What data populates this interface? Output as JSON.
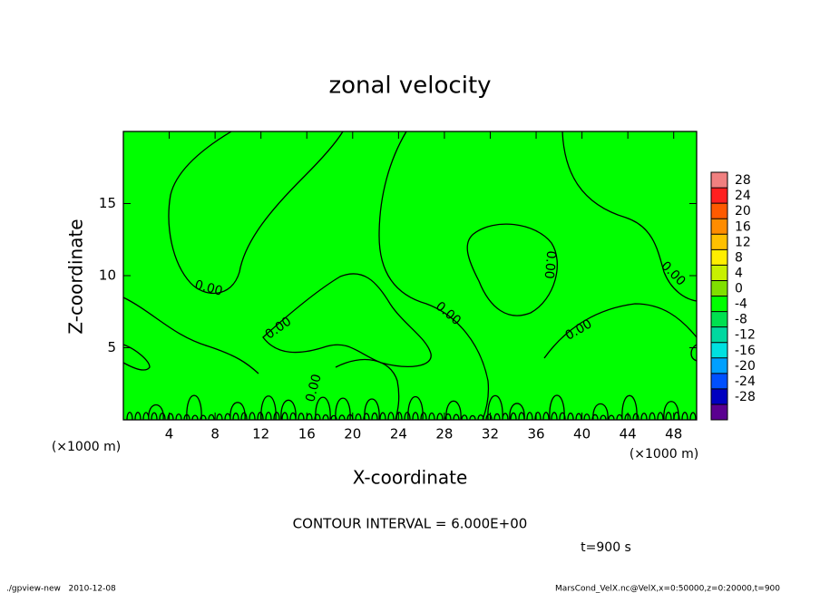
{
  "chart_data": {
    "type": "contour",
    "title": "zonal velocity",
    "x_label": "X-coordinate",
    "y_label": "Z-coordinate",
    "y_unit": "(×1000 m)",
    "x_unit": "(×1000 m)",
    "xlim": [
      0,
      50
    ],
    "ylim": [
      0,
      20
    ],
    "xticks": [
      4,
      8,
      12,
      16,
      20,
      24,
      28,
      32,
      36,
      40,
      44,
      48
    ],
    "yticks": [
      5,
      10,
      15
    ],
    "fill_color": "#00ff00",
    "line_color": "#000000",
    "contour_labels": [
      "0.00",
      "0.00",
      "0.00",
      "0.00",
      "0.00",
      "0.00",
      "0.00"
    ],
    "colorbar": {
      "levels": [
        28,
        24,
        20,
        16,
        12,
        8,
        4,
        0,
        -4,
        -8,
        -12,
        -16,
        -20,
        -24,
        -28
      ],
      "colors": [
        "#f08080",
        "#ff2020",
        "#ff5a00",
        "#ff8c00",
        "#ffc000",
        "#ffee00",
        "#c8f000",
        "#80e000",
        "#00ff00",
        "#00e050",
        "#00d8a0",
        "#00e0e0",
        "#00a0ff",
        "#0050ff",
        "#0000c0",
        "#5a0090"
      ]
    },
    "contour_interval": "CONTOUR INTERVAL = 6.000E+00",
    "time": "t=900 s",
    "program": "./gpview-new   2010-12-08",
    "source": "MarsCond_VelX.nc@VelX,x=0:50000,z=0:20000,t=900"
  }
}
